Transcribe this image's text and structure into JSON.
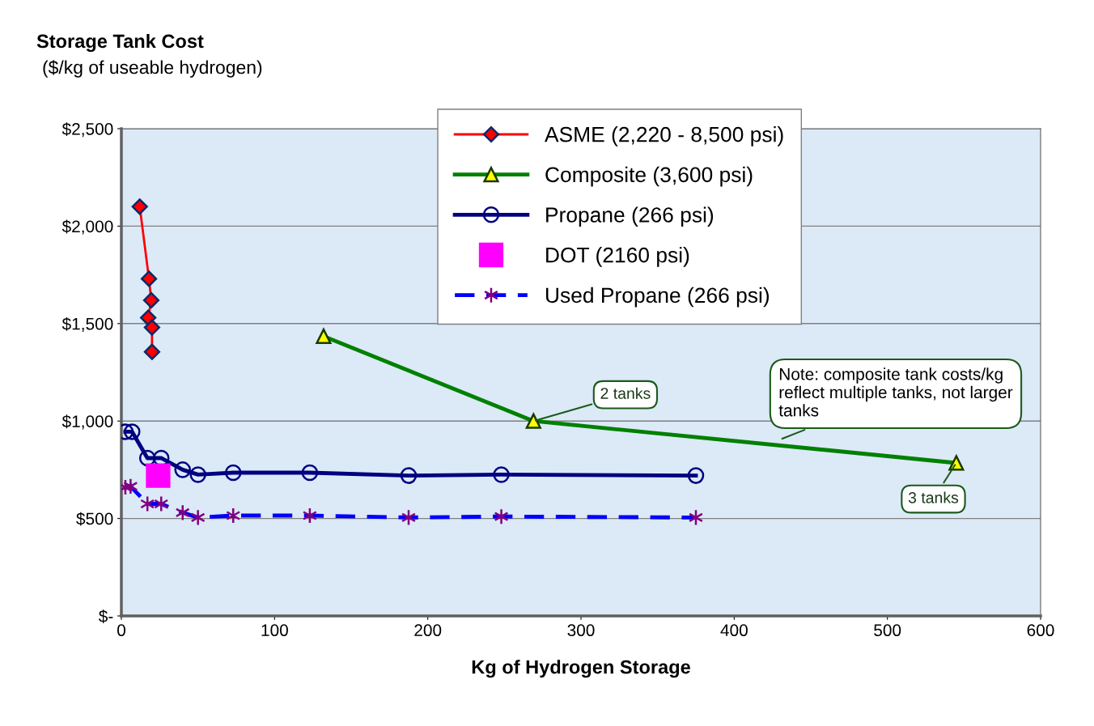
{
  "chart_data": {
    "type": "line",
    "title": "Storage Tank Cost",
    "subtitle": "($/kg of useable hydrogen)",
    "xlabel": "Kg of Hydrogen Storage",
    "xlim": [
      0,
      600
    ],
    "xticks": [
      0,
      100,
      200,
      300,
      400,
      500,
      600
    ],
    "ylim": [
      0,
      2500
    ],
    "yticks": [
      {
        "value": 0,
        "label": "$-"
      },
      {
        "value": 500,
        "label": "$500"
      },
      {
        "value": 1000,
        "label": "$1,000"
      },
      {
        "value": 1500,
        "label": "$1,500"
      },
      {
        "value": 2000,
        "label": "$2,000"
      },
      {
        "value": 2500,
        "label": "$2,500"
      }
    ],
    "grid": "y",
    "legend": "top right",
    "series": [
      {
        "name": "ASME (2,220 - 8,500 psi)",
        "color": "#ff0000",
        "marker": "diamond",
        "line_style": "solid",
        "x": [
          12,
          18,
          19.5,
          17.5,
          20,
          20
        ],
        "values": [
          2100,
          1730,
          1620,
          1530,
          1480,
          1355
        ]
      },
      {
        "name": "Composite (3,600 psi)",
        "color": "#008000",
        "marker": "triangle",
        "line_style": "solid",
        "x": [
          132,
          269,
          545
        ],
        "values": [
          1435,
          1000,
          785
        ]
      },
      {
        "name": "Propane (266 psi)",
        "color": "#000080",
        "marker": "circle",
        "line_style": "solid",
        "x": [
          2.6,
          7,
          17,
          26,
          40,
          50,
          73,
          123,
          187.5,
          248,
          375
        ],
        "values": [
          945,
          945,
          810,
          810,
          750,
          725,
          735,
          735,
          720,
          725,
          720
        ]
      },
      {
        "name": "DOT (2160 psi)",
        "type": "scatter",
        "color": "#ff00ff",
        "marker": "square",
        "x": [
          24
        ],
        "values": [
          720
        ]
      },
      {
        "name": "Used Propane (266 psi)",
        "color": "#0000ff",
        "marker": "cross",
        "line_style": "dashed",
        "x": [
          2.6,
          6,
          17,
          26,
          40,
          50,
          73,
          123,
          187.5,
          248,
          375
        ],
        "values": [
          660,
          665,
          575,
          575,
          530,
          505,
          515,
          515,
          505,
          510,
          505
        ]
      }
    ],
    "annotations": [
      {
        "text": "2 tanks",
        "x": 269,
        "y": 1000
      },
      {
        "text": "3 tanks",
        "x": 545,
        "y": 785
      },
      "Note: composite tank costs/kg\nreflect multiple tanks, not larger\ntanks"
    ]
  }
}
